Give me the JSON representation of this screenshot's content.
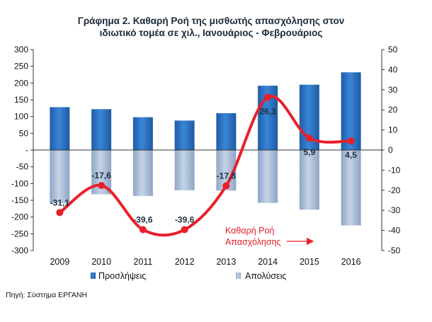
{
  "chart_data": {
    "type": "bar",
    "title_lines": [
      "Γράφημα 2. Καθαρή Ροή της μισθωτής απασχόλησης στον",
      "ιδιωτικό τομέα σε χιλ., Ιανουάριος - Φεβρουάριος"
    ],
    "categories": [
      "2009",
      "2010",
      "2011",
      "2012",
      "2013",
      "2014",
      "2015",
      "2016"
    ],
    "y_left": {
      "min": -300,
      "max": 300,
      "step": 50,
      "tick_labels": [
        "300",
        "250",
        "200",
        "150",
        "100",
        "50",
        "-",
        "-50",
        "-100",
        "-150",
        "-200",
        "-250",
        "-300"
      ]
    },
    "y_right": {
      "min": -50,
      "max": 50,
      "step": 10,
      "tick_labels": [
        "50",
        "40",
        "30",
        "20",
        "10",
        "0",
        "-10",
        "-20",
        "-30",
        "-40",
        "-50"
      ]
    },
    "series": [
      {
        "name": "Προσλήψεις",
        "type": "bar",
        "axis": "left",
        "color": "#2f75c6",
        "values": [
          128,
          122,
          98,
          88,
          110,
          192,
          195,
          232
        ]
      },
      {
        "name": "Απολύσεις",
        "type": "bar",
        "axis": "left",
        "color": "#a9bcd8",
        "values": [
          -159,
          -132,
          -137,
          -120,
          -121,
          -158,
          -178,
          -225
        ]
      },
      {
        "name": "Καθαρή Ροή Απασχόλησης",
        "type": "line",
        "axis": "right",
        "color": "#e8202a",
        "values": [
          -31.1,
          -17.6,
          -39.6,
          -39.6,
          -17.8,
          26.3,
          5.9,
          4.5
        ],
        "labels": [
          "-31,1",
          "-17,6",
          "-39,6",
          "-39,6",
          "-17,8",
          "26,3",
          "5,9",
          "4,5"
        ]
      }
    ],
    "annotation_lines": [
      "Καθαρή Ροή",
      "Απασχόλησης"
    ],
    "legend_position": "bottom",
    "grid": false
  },
  "source_text": "Πηγή: Σύστημα ΕΡΓΑΝΗ"
}
